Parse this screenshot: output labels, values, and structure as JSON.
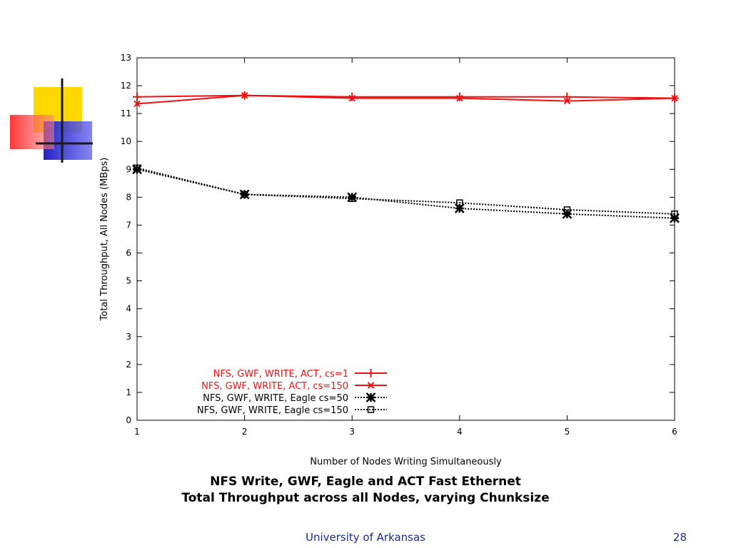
{
  "slide": {
    "caption_line1": "NFS Write, GWF, Eagle and ACT Fast Ethernet",
    "caption_line2": "Total Throughput across all Nodes, varying Chunksize",
    "footer": "University of Arkansas",
    "page_number": "28"
  },
  "decoration": {
    "colors": {
      "yellow": "#ffd800",
      "blue": "#2222c8",
      "red": "#ff2a2a",
      "line": "#1a1a1a"
    }
  },
  "chart_data": {
    "type": "line",
    "title": "",
    "xlabel": "Number of Nodes Writing Simultaneously",
    "ylabel": "Total Throughput, All Nodes (MBps)",
    "xlim": [
      1,
      6
    ],
    "ylim": [
      0,
      13
    ],
    "x_ticks": [
      1,
      2,
      3,
      4,
      5,
      6
    ],
    "y_ticks": [
      0,
      1,
      2,
      3,
      4,
      5,
      6,
      7,
      8,
      9,
      10,
      11,
      12,
      13
    ],
    "grid": false,
    "legend_position": "bottom-left",
    "x": [
      1,
      2,
      3,
      4,
      5,
      6
    ],
    "series": [
      {
        "name": "NFS, GWF, WRITE, ACT, cs=1",
        "values": [
          11.6,
          11.65,
          11.6,
          11.6,
          11.6,
          11.55
        ],
        "color": "#ee1111",
        "dash": "solid",
        "marker": "plus"
      },
      {
        "name": "NFS, GWF, WRITE, ACT, cs=150",
        "values": [
          11.35,
          11.65,
          11.55,
          11.55,
          11.45,
          11.55
        ],
        "color": "#ee1111",
        "dash": "solid",
        "marker": "x"
      },
      {
        "name": "NFS, GWF, WRITE, Eagle cs=50",
        "values": [
          9.0,
          8.1,
          8.0,
          7.6,
          7.4,
          7.25
        ],
        "color": "#000000",
        "dash": "dotted",
        "marker": "star"
      },
      {
        "name": "NFS, GWF, WRITE, Eagle cs=150",
        "values": [
          9.05,
          8.1,
          7.95,
          7.8,
          7.55,
          7.4
        ],
        "color": "#000000",
        "dash": "dotted",
        "marker": "box"
      }
    ]
  }
}
